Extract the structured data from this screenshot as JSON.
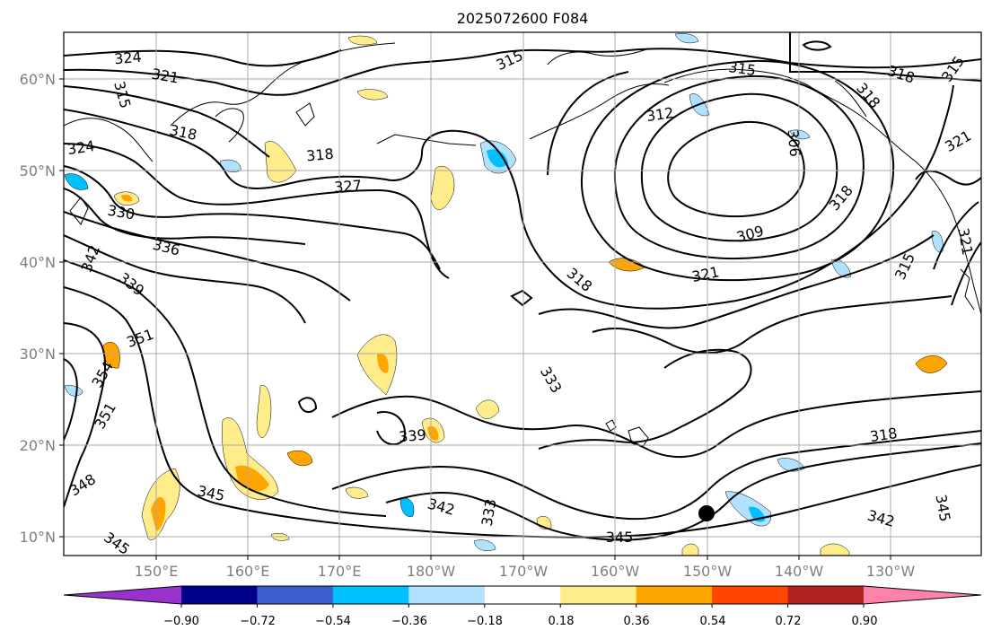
{
  "title": "2025072600 F084",
  "map": {
    "lat_ticks": [
      "10°N",
      "20°N",
      "30°N",
      "40°N",
      "50°N",
      "60°N"
    ],
    "lon_ticks": [
      "150°E",
      "160°E",
      "170°E",
      "180°W",
      "170°W",
      "160°W",
      "150°W",
      "140°W",
      "130°W"
    ],
    "contour_labels": [
      "324",
      "321",
      "315",
      "318",
      "318",
      "327",
      "324",
      "330",
      "336",
      "342",
      "339",
      "351",
      "354",
      "351",
      "348",
      "345",
      "345",
      "315",
      "312",
      "315",
      "306",
      "318",
      "318",
      "315",
      "321",
      "318",
      "309",
      "321",
      "318",
      "315",
      "321",
      "333",
      "339",
      "342",
      "333",
      "345",
      "342",
      "318",
      "345"
    ],
    "marker": "black-dot"
  },
  "colorbar": {
    "tick_labels": [
      "−0.90",
      "−0.72",
      "−0.54",
      "−0.36",
      "−0.18",
      "0.18",
      "0.36",
      "0.54",
      "0.72",
      "0.90"
    ],
    "colors": [
      "#9932cc",
      "#00008b",
      "#3a5fcd",
      "#00bfff",
      "#b0e2ff",
      "#ffffff",
      "#ffec8b",
      "#ffa500",
      "#ff4500",
      "#b22222",
      "#ff82ab"
    ]
  }
}
